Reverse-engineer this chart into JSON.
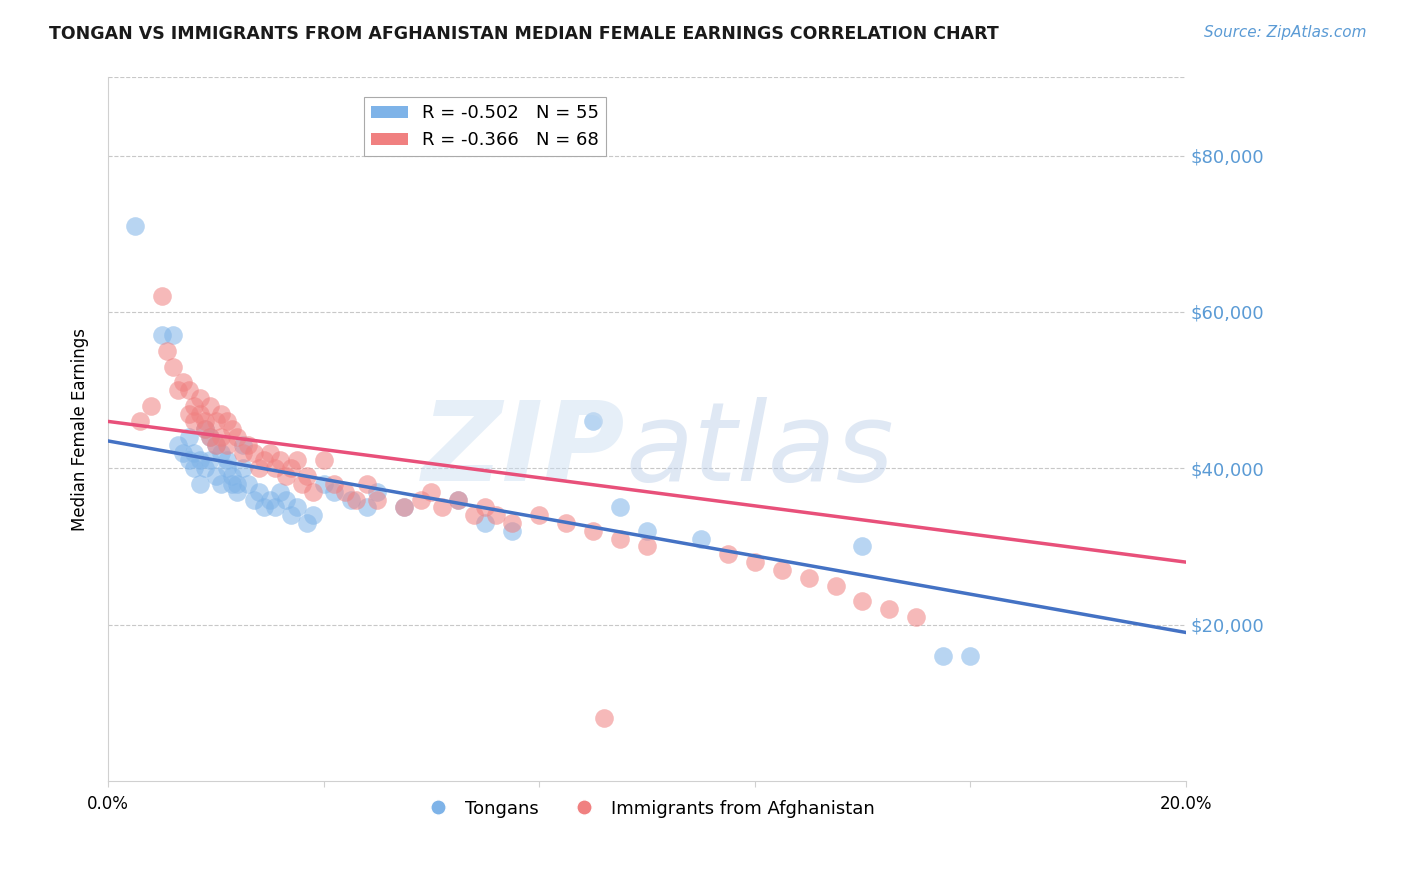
{
  "title": "TONGAN VS IMMIGRANTS FROM AFGHANISTAN MEDIAN FEMALE EARNINGS CORRELATION CHART",
  "source": "Source: ZipAtlas.com",
  "ylabel": "Median Female Earnings",
  "ylim": [
    0,
    90000
  ],
  "xlim": [
    0.0,
    0.2
  ],
  "legend": [
    {
      "label": "R = -0.502   N = 55",
      "color": "#7EB3E8"
    },
    {
      "label": "R = -0.366   N = 68",
      "color": "#F08080"
    }
  ],
  "legend_labels": [
    "Tongans",
    "Immigrants from Afghanistan"
  ],
  "blue_color": "#7EB3E8",
  "pink_color": "#F08080",
  "line_blue": "#4472C4",
  "line_pink": "#E8507A",
  "blue_scatter_x": [
    0.005,
    0.01,
    0.012,
    0.013,
    0.014,
    0.015,
    0.015,
    0.016,
    0.016,
    0.017,
    0.017,
    0.018,
    0.018,
    0.019,
    0.019,
    0.02,
    0.02,
    0.021,
    0.021,
    0.022,
    0.022,
    0.023,
    0.023,
    0.024,
    0.024,
    0.025,
    0.025,
    0.026,
    0.027,
    0.028,
    0.029,
    0.03,
    0.031,
    0.032,
    0.033,
    0.034,
    0.035,
    0.037,
    0.038,
    0.04,
    0.042,
    0.045,
    0.048,
    0.05,
    0.055,
    0.065,
    0.07,
    0.075,
    0.09,
    0.095,
    0.1,
    0.11,
    0.14,
    0.155,
    0.16
  ],
  "blue_scatter_y": [
    71000,
    57000,
    57000,
    43000,
    42000,
    44000,
    41000,
    42000,
    40000,
    41000,
    38000,
    45000,
    40000,
    44000,
    41000,
    43000,
    39000,
    42000,
    38000,
    41000,
    40000,
    39000,
    38000,
    38000,
    37000,
    43000,
    40000,
    38000,
    36000,
    37000,
    35000,
    36000,
    35000,
    37000,
    36000,
    34000,
    35000,
    33000,
    34000,
    38000,
    37000,
    36000,
    35000,
    37000,
    35000,
    36000,
    33000,
    32000,
    46000,
    35000,
    32000,
    31000,
    30000,
    16000,
    16000
  ],
  "pink_scatter_x": [
    0.006,
    0.008,
    0.01,
    0.011,
    0.012,
    0.013,
    0.014,
    0.015,
    0.015,
    0.016,
    0.016,
    0.017,
    0.017,
    0.018,
    0.018,
    0.019,
    0.019,
    0.02,
    0.02,
    0.021,
    0.021,
    0.022,
    0.022,
    0.023,
    0.024,
    0.025,
    0.026,
    0.027,
    0.028,
    0.029,
    0.03,
    0.031,
    0.032,
    0.033,
    0.034,
    0.035,
    0.036,
    0.037,
    0.038,
    0.04,
    0.042,
    0.044,
    0.046,
    0.048,
    0.05,
    0.055,
    0.058,
    0.06,
    0.062,
    0.065,
    0.068,
    0.07,
    0.072,
    0.075,
    0.08,
    0.085,
    0.09,
    0.095,
    0.1,
    0.115,
    0.12,
    0.125,
    0.13,
    0.135,
    0.14,
    0.145,
    0.15,
    0.092
  ],
  "pink_scatter_y": [
    46000,
    48000,
    62000,
    55000,
    53000,
    50000,
    51000,
    50000,
    47000,
    48000,
    46000,
    49000,
    47000,
    46000,
    45000,
    48000,
    44000,
    46000,
    43000,
    47000,
    44000,
    46000,
    43000,
    45000,
    44000,
    42000,
    43000,
    42000,
    40000,
    41000,
    42000,
    40000,
    41000,
    39000,
    40000,
    41000,
    38000,
    39000,
    37000,
    41000,
    38000,
    37000,
    36000,
    38000,
    36000,
    35000,
    36000,
    37000,
    35000,
    36000,
    34000,
    35000,
    34000,
    33000,
    34000,
    33000,
    32000,
    31000,
    30000,
    29000,
    28000,
    27000,
    26000,
    25000,
    23000,
    22000,
    21000,
    8000
  ],
  "blue_line_x0": 0.0,
  "blue_line_x1": 0.2,
  "blue_line_y0": 43500,
  "blue_line_y1": 19000,
  "pink_line_x0": 0.0,
  "pink_line_x1": 0.2,
  "pink_line_y0": 46000,
  "pink_line_y1": 28000
}
